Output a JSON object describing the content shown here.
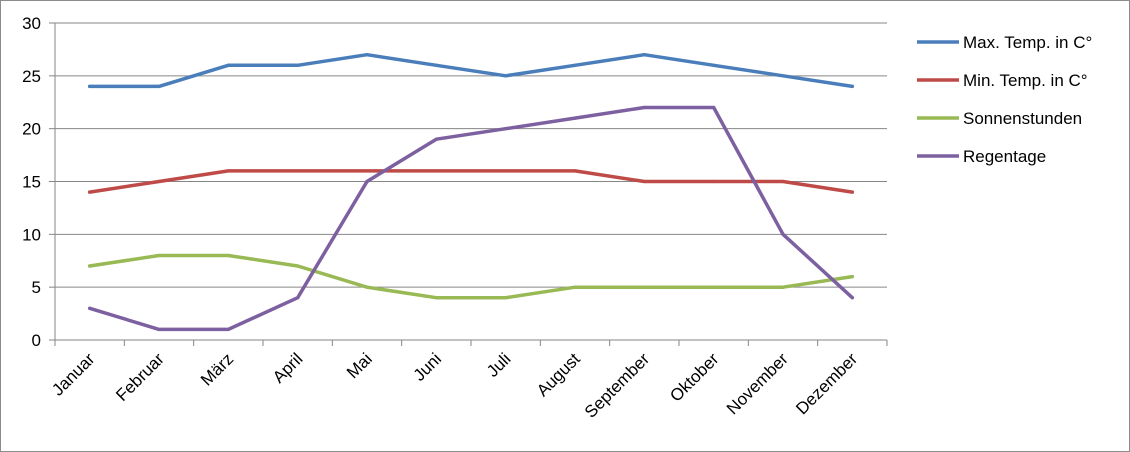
{
  "chart_data": {
    "type": "line",
    "categories": [
      "Januar",
      "Februar",
      "März",
      "April",
      "Mai",
      "Juni",
      "Juli",
      "August",
      "September",
      "Oktober",
      "November",
      "Dezember"
    ],
    "series": [
      {
        "name": "Max. Temp. in C°",
        "color": "#4a7ebb",
        "values": [
          24,
          24,
          26,
          26,
          27,
          26,
          25,
          26,
          27,
          26,
          25,
          24
        ]
      },
      {
        "name": "Min. Temp. in C°",
        "color": "#be4b48",
        "values": [
          14,
          15,
          16,
          16,
          16,
          16,
          16,
          16,
          15,
          15,
          15,
          14
        ]
      },
      {
        "name": "Sonnenstunden",
        "color": "#98b954",
        "values": [
          7,
          8,
          8,
          7,
          5,
          4,
          4,
          5,
          5,
          5,
          5,
          6
        ]
      },
      {
        "name": "Regentage",
        "color": "#7d60a0",
        "values": [
          3,
          1,
          1,
          4,
          15,
          19,
          20,
          21,
          22,
          22,
          10,
          4
        ]
      }
    ],
    "ylim": [
      0,
      30
    ],
    "yticks": [
      "0",
      "5",
      "10",
      "15",
      "20",
      "25",
      "30"
    ],
    "grid": true,
    "legend_position": "right"
  }
}
